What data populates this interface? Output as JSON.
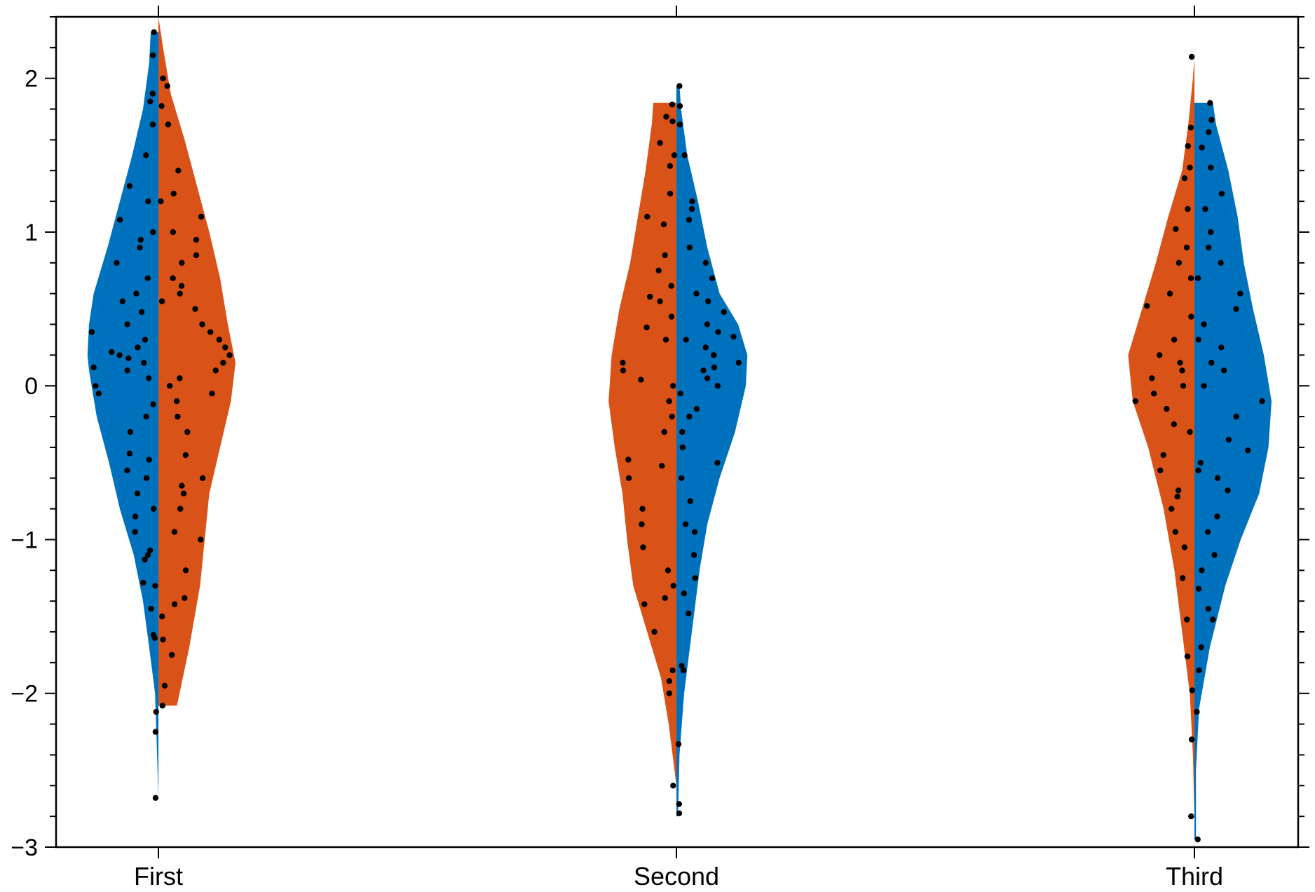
{
  "chart_data": {
    "type": "violin",
    "split": true,
    "categories": [
      "First",
      "Second",
      "Third"
    ],
    "ylim": [
      -3,
      2.4
    ],
    "y_ticks": [
      -3,
      -2,
      -1,
      0,
      1,
      2
    ],
    "y_tick_labels": [
      "−3",
      "−2",
      "−1",
      "0",
      "1",
      "2"
    ],
    "y_minor_step": 0.2,
    "colors": {
      "blue": "#0072BD",
      "orange": "#D95319",
      "points": "#000000"
    },
    "series": [
      {
        "category": "First",
        "left": {
          "color": "#0072BD",
          "min": -2.68,
          "max": 2.3,
          "density": [
            [
              -2.68,
              0.0
            ],
            [
              -2.3,
              0.012
            ],
            [
              -2.0,
              0.022
            ],
            [
              -1.7,
              0.06
            ],
            [
              -1.4,
              0.1
            ],
            [
              -1.1,
              0.16
            ],
            [
              -0.8,
              0.25
            ],
            [
              -0.5,
              0.32
            ],
            [
              -0.2,
              0.4
            ],
            [
              0.1,
              0.45
            ],
            [
              0.2,
              0.46
            ],
            [
              0.4,
              0.45
            ],
            [
              0.6,
              0.42
            ],
            [
              0.9,
              0.33
            ],
            [
              1.2,
              0.25
            ],
            [
              1.5,
              0.17
            ],
            [
              1.8,
              0.1
            ],
            [
              2.1,
              0.06
            ],
            [
              2.3,
              0.05
            ]
          ],
          "points": [
            -2.68,
            -2.25,
            -2.12,
            -1.64,
            -1.62,
            -1.45,
            -1.3,
            -1.28,
            -1.13,
            -1.1,
            -1.07,
            -0.95,
            -0.85,
            -0.8,
            -0.7,
            -0.6,
            -0.55,
            -0.48,
            -0.44,
            -0.3,
            -0.2,
            -0.12,
            -0.05,
            0.0,
            0.05,
            0.1,
            0.12,
            0.15,
            0.18,
            0.2,
            0.22,
            0.25,
            0.3,
            0.35,
            0.4,
            0.48,
            0.55,
            0.6,
            0.7,
            0.8,
            0.9,
            0.95,
            1.0,
            1.08,
            1.2,
            1.3,
            1.5,
            1.7,
            1.85,
            1.9,
            2.15,
            2.3
          ]
        },
        "right": {
          "color": "#D95319",
          "min": -2.08,
          "max": 2.4,
          "density": [
            [
              -2.08,
              0.12
            ],
            [
              -1.7,
              0.2
            ],
            [
              -1.3,
              0.27
            ],
            [
              -1.0,
              0.3
            ],
            [
              -0.7,
              0.33
            ],
            [
              -0.4,
              0.4
            ],
            [
              -0.1,
              0.47
            ],
            [
              0.15,
              0.5
            ],
            [
              0.4,
              0.45
            ],
            [
              0.7,
              0.4
            ],
            [
              1.0,
              0.33
            ],
            [
              1.3,
              0.25
            ],
            [
              1.6,
              0.17
            ],
            [
              1.9,
              0.08
            ],
            [
              2.2,
              0.03
            ],
            [
              2.4,
              0.0
            ]
          ],
          "points": [
            -2.08,
            -1.95,
            -1.75,
            -1.65,
            -1.5,
            -1.42,
            -1.38,
            -1.2,
            -1.0,
            -0.95,
            -0.8,
            -0.7,
            -0.65,
            -0.6,
            -0.45,
            -0.3,
            -0.2,
            -0.1,
            -0.05,
            0.0,
            0.05,
            0.1,
            0.15,
            0.2,
            0.25,
            0.3,
            0.35,
            0.4,
            0.5,
            0.55,
            0.6,
            0.65,
            0.7,
            0.8,
            0.85,
            0.95,
            1.0,
            1.1,
            1.2,
            1.25,
            1.4,
            1.7,
            1.82,
            1.95,
            2.0
          ]
        }
      },
      {
        "category": "Second",
        "left": {
          "color": "#D95319",
          "min": -2.6,
          "max": 1.84,
          "density": [
            [
              -2.6,
              0.0
            ],
            [
              -2.2,
              0.05
            ],
            [
              -1.9,
              0.1
            ],
            [
              -1.6,
              0.19
            ],
            [
              -1.3,
              0.28
            ],
            [
              -1.0,
              0.32
            ],
            [
              -0.7,
              0.35
            ],
            [
              -0.4,
              0.4
            ],
            [
              -0.1,
              0.44
            ],
            [
              0.2,
              0.42
            ],
            [
              0.5,
              0.37
            ],
            [
              0.8,
              0.3
            ],
            [
              1.1,
              0.25
            ],
            [
              1.4,
              0.2
            ],
            [
              1.7,
              0.16
            ],
            [
              1.84,
              0.15
            ]
          ],
          "points": [
            -2.6,
            -2.0,
            -1.92,
            -1.85,
            -1.6,
            -1.42,
            -1.38,
            -1.3,
            -1.2,
            -1.05,
            -0.9,
            -0.8,
            -0.6,
            -0.52,
            -0.48,
            -0.3,
            -0.2,
            -0.1,
            0.0,
            0.04,
            0.1,
            0.15,
            0.3,
            0.38,
            0.45,
            0.55,
            0.58,
            0.65,
            0.75,
            0.85,
            1.05,
            1.1,
            1.25,
            1.43,
            1.5,
            1.58,
            1.72,
            1.75,
            1.83
          ]
        },
        "right": {
          "color": "#0072BD",
          "min": -2.8,
          "max": 1.95,
          "density": [
            [
              -2.8,
              0.01
            ],
            [
              -2.4,
              0.02
            ],
            [
              -2.0,
              0.05
            ],
            [
              -1.6,
              0.1
            ],
            [
              -1.2,
              0.15
            ],
            [
              -0.9,
              0.2
            ],
            [
              -0.6,
              0.28
            ],
            [
              -0.3,
              0.38
            ],
            [
              0.0,
              0.45
            ],
            [
              0.2,
              0.46
            ],
            [
              0.4,
              0.4
            ],
            [
              0.6,
              0.28
            ],
            [
              0.9,
              0.2
            ],
            [
              1.2,
              0.14
            ],
            [
              1.5,
              0.07
            ],
            [
              1.8,
              0.03
            ],
            [
              1.95,
              0.02
            ]
          ],
          "points": [
            -2.78,
            -2.72,
            -2.33,
            -1.85,
            -1.82,
            -1.48,
            -1.35,
            -1.25,
            -1.1,
            -0.95,
            -0.9,
            -0.75,
            -0.6,
            -0.5,
            -0.4,
            -0.3,
            -0.2,
            -0.15,
            -0.05,
            0.0,
            0.05,
            0.1,
            0.12,
            0.15,
            0.2,
            0.25,
            0.3,
            0.32,
            0.35,
            0.4,
            0.48,
            0.55,
            0.6,
            0.7,
            0.8,
            0.9,
            1.08,
            1.15,
            1.2,
            1.5,
            1.7,
            1.82,
            1.95
          ]
        }
      },
      {
        "category": "Third",
        "left": {
          "color": "#D95319",
          "min": -2.8,
          "max": 2.14,
          "density": [
            [
              -2.8,
              0.0
            ],
            [
              -2.4,
              0.01
            ],
            [
              -2.0,
              0.03
            ],
            [
              -1.6,
              0.08
            ],
            [
              -1.2,
              0.13
            ],
            [
              -0.8,
              0.2
            ],
            [
              -0.4,
              0.3
            ],
            [
              -0.1,
              0.4
            ],
            [
              0.2,
              0.43
            ],
            [
              0.5,
              0.34
            ],
            [
              0.8,
              0.25
            ],
            [
              1.1,
              0.17
            ],
            [
              1.4,
              0.08
            ],
            [
              1.7,
              0.04
            ],
            [
              2.0,
              0.01
            ],
            [
              2.14,
              0.0
            ]
          ],
          "points": [
            -2.8,
            -2.3,
            -1.98,
            -1.76,
            -1.52,
            -1.25,
            -1.05,
            -0.95,
            -0.8,
            -0.72,
            -0.68,
            -0.55,
            -0.45,
            -0.3,
            -0.25,
            -0.15,
            -0.1,
            -0.05,
            0.0,
            0.05,
            0.1,
            0.15,
            0.2,
            0.3,
            0.45,
            0.52,
            0.6,
            0.7,
            0.8,
            0.9,
            1.02,
            1.15,
            1.35,
            1.42,
            1.56,
            1.68,
            2.14
          ]
        },
        "right": {
          "color": "#0072BD",
          "min": -2.95,
          "max": 1.84,
          "density": [
            [
              -2.95,
              0.01
            ],
            [
              -2.5,
              0.01
            ],
            [
              -2.1,
              0.03
            ],
            [
              -1.7,
              0.1
            ],
            [
              -1.3,
              0.2
            ],
            [
              -1.0,
              0.3
            ],
            [
              -0.7,
              0.42
            ],
            [
              -0.4,
              0.48
            ],
            [
              -0.1,
              0.5
            ],
            [
              0.2,
              0.45
            ],
            [
              0.5,
              0.38
            ],
            [
              0.8,
              0.32
            ],
            [
              1.1,
              0.28
            ],
            [
              1.4,
              0.22
            ],
            [
              1.7,
              0.14
            ],
            [
              1.84,
              0.12
            ]
          ],
          "points": [
            -2.95,
            -2.12,
            -1.85,
            -1.7,
            -1.52,
            -1.45,
            -1.32,
            -1.2,
            -1.1,
            -0.95,
            -0.85,
            -0.68,
            -0.6,
            -0.55,
            -0.5,
            -0.42,
            -0.35,
            -0.2,
            -0.1,
            0.0,
            0.1,
            0.15,
            0.25,
            0.3,
            0.4,
            0.5,
            0.6,
            0.7,
            0.8,
            0.9,
            1.0,
            1.15,
            1.25,
            1.42,
            1.55,
            1.65,
            1.73,
            1.84
          ]
        }
      }
    ]
  }
}
